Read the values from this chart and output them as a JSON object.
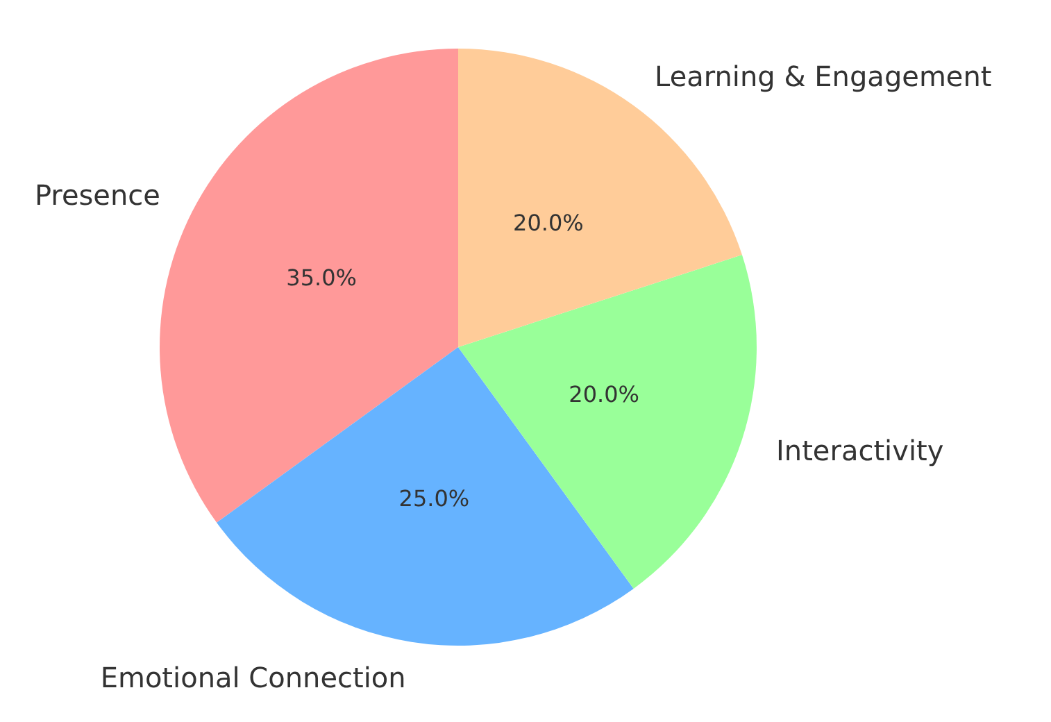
{
  "chart_data": {
    "type": "pie",
    "categories": [
      "Presence",
      "Emotional Connection",
      "Interactivity",
      "Learning & Engagement"
    ],
    "values": [
      35,
      25,
      20,
      20
    ],
    "colors": [
      "#ff9999",
      "#66b3ff",
      "#99ff99",
      "#ffcc99"
    ],
    "value_labels": [
      "35.0%",
      "25.0%",
      "20.0%",
      "20.0%"
    ],
    "legend": false
  }
}
